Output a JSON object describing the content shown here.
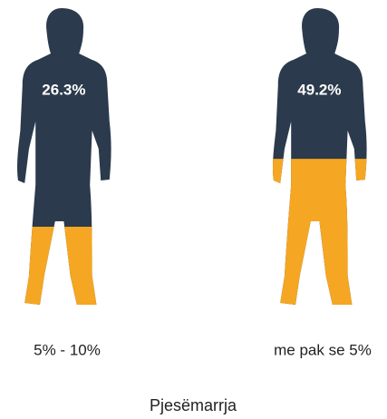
{
  "chart_data": {
    "type": "pictograph",
    "title": "Pjesëmarrja",
    "categories": [
      "5% - 10%",
      "me pak se 5%"
    ],
    "values": [
      26.3,
      49.2
    ],
    "value_labels": [
      "26.3%",
      "49.2%"
    ],
    "ylim": [
      0,
      100
    ],
    "color": "#f5a623",
    "base_color": "#2b3a4c"
  }
}
